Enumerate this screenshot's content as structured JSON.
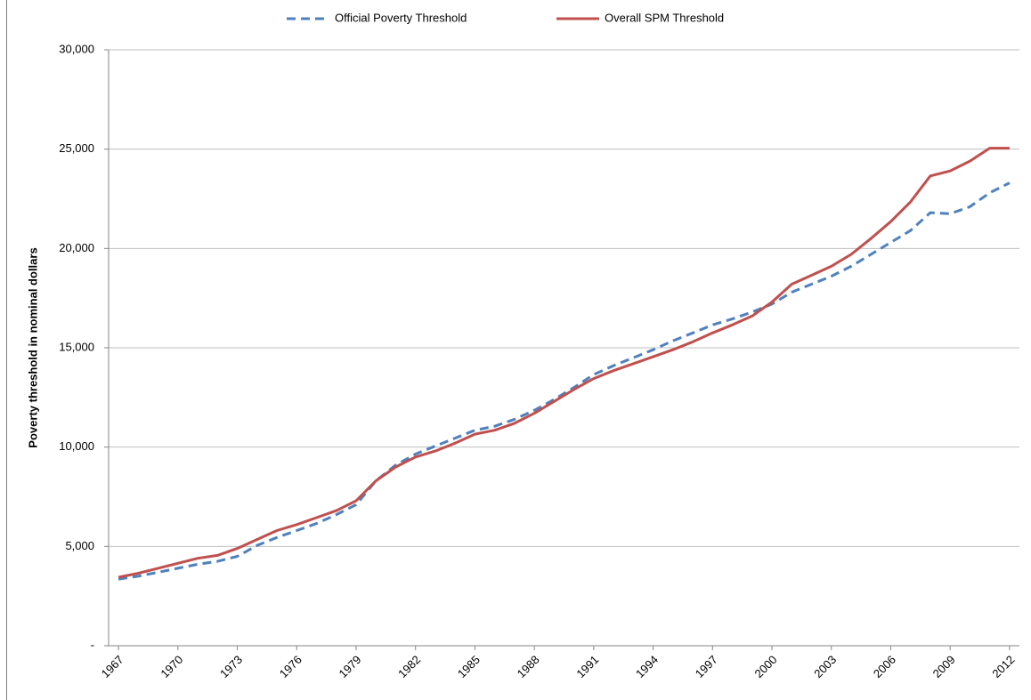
{
  "chart_data": {
    "type": "line",
    "y_label": "Poverty threshold in nominal dollars",
    "x": [
      1967,
      1968,
      1969,
      1970,
      1971,
      1972,
      1973,
      1974,
      1975,
      1976,
      1977,
      1978,
      1979,
      1980,
      1981,
      1982,
      1983,
      1984,
      1985,
      1986,
      1987,
      1988,
      1989,
      1990,
      1991,
      1992,
      1993,
      1994,
      1995,
      1996,
      1997,
      1998,
      1999,
      2000,
      2001,
      2002,
      2003,
      2004,
      2005,
      2006,
      2007,
      2008,
      2009,
      2010,
      2011,
      2012
    ],
    "xlim": [
      1966.5,
      2012.5
    ],
    "xticks": [
      1967,
      1970,
      1973,
      1976,
      1979,
      1982,
      1985,
      1988,
      1991,
      1994,
      1997,
      2000,
      2003,
      2006,
      2009,
      2012
    ],
    "ylim": [
      0,
      30000
    ],
    "yticks": [
      {
        "value": 0,
        "label": "-"
      },
      {
        "value": 5000,
        "label": "5,000"
      },
      {
        "value": 10000,
        "label": "10,000"
      },
      {
        "value": 15000,
        "label": "15,000"
      },
      {
        "value": 20000,
        "label": "20,000"
      },
      {
        "value": 25000,
        "label": "25,000"
      },
      {
        "value": 30000,
        "label": "30,000"
      }
    ],
    "grid": true,
    "legend": "top",
    "series": [
      {
        "name": "Official Poverty Threshold",
        "color": "#4f81bd",
        "style": "dashed",
        "values": [
          3350,
          3500,
          3700,
          3900,
          4100,
          4250,
          4500,
          5050,
          5450,
          5800,
          6150,
          6600,
          7100,
          8300,
          9100,
          9650,
          10050,
          10450,
          10850,
          11050,
          11400,
          11850,
          12400,
          13000,
          13650,
          14100,
          14500,
          14900,
          15350,
          15750,
          16150,
          16450,
          16800,
          17200,
          17800,
          18200,
          18600,
          19100,
          19700,
          20300,
          20900,
          21800,
          21750,
          22100,
          22800,
          23300
        ]
      },
      {
        "name": "Overall SPM Threshold",
        "color": "#c0504d",
        "style": "solid",
        "values": [
          3450,
          3650,
          3900,
          4150,
          4400,
          4550,
          4900,
          5350,
          5800,
          6100,
          6450,
          6800,
          7300,
          8300,
          9000,
          9500,
          9800,
          10200,
          10650,
          10850,
          11200,
          11700,
          12300,
          12900,
          13450,
          13850,
          14200,
          14550,
          14900,
          15300,
          15750,
          16150,
          16600,
          17300,
          18200,
          18650,
          19100,
          19700,
          20500,
          21350,
          22350,
          23650,
          23900,
          24400,
          25050,
          25050
        ]
      }
    ]
  }
}
